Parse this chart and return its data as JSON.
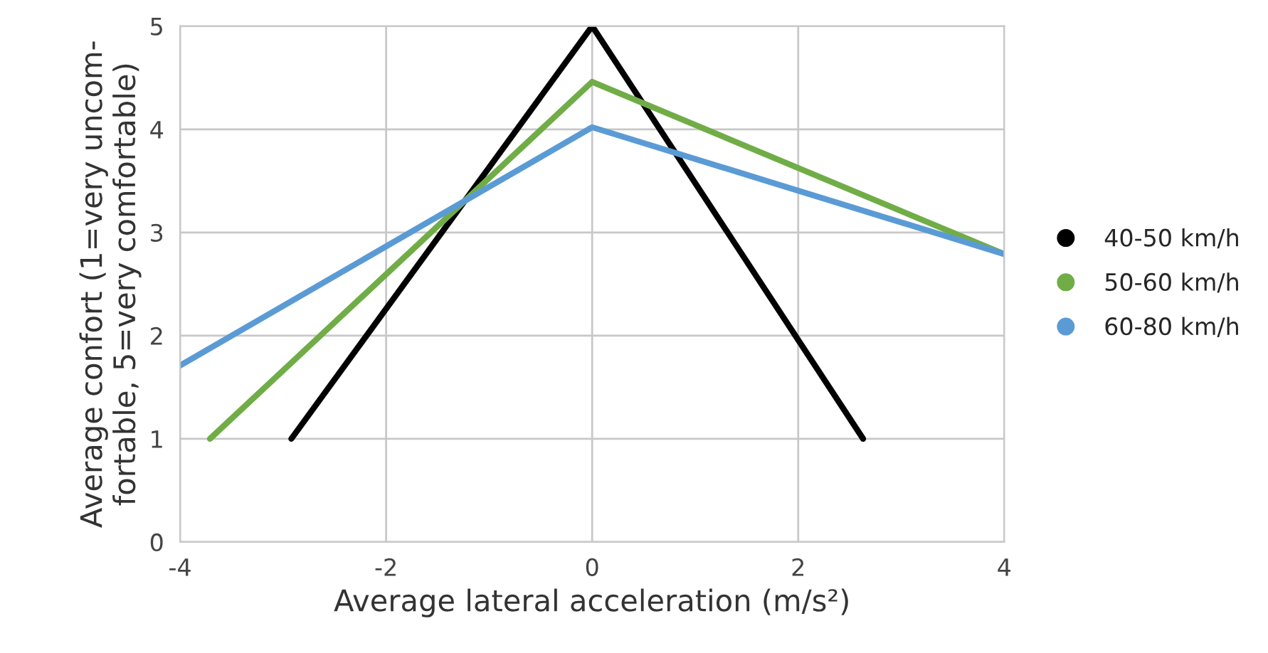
{
  "chart_data": {
    "type": "line",
    "xlabel": "Average lateral acceleration (m/s²)",
    "ylabel": "Average confort (1=very uncom-\nfortable, 5=very comfortable)",
    "xlim": [
      -4,
      4
    ],
    "xticks": [
      -4,
      -2,
      0,
      2,
      4
    ],
    "ylim": [
      0,
      5
    ],
    "yticks": [
      0,
      1,
      2,
      3,
      4,
      5
    ],
    "grid": true,
    "legend": "right",
    "series": [
      {
        "name": "40-50 km/h",
        "color": "#000000",
        "x": [
          -2.92,
          0,
          2.63
        ],
        "values": [
          1,
          5,
          1
        ]
      },
      {
        "name": "50-60 km/h",
        "color": "#70ad47",
        "x": [
          -3.71,
          0,
          4
        ],
        "values": [
          1,
          4.46,
          2.79
        ]
      },
      {
        "name": "60-80 km/h",
        "color": "#5b9bd5",
        "x": [
          -4,
          0,
          4
        ],
        "values": [
          1.71,
          4.02,
          2.79
        ]
      }
    ]
  }
}
